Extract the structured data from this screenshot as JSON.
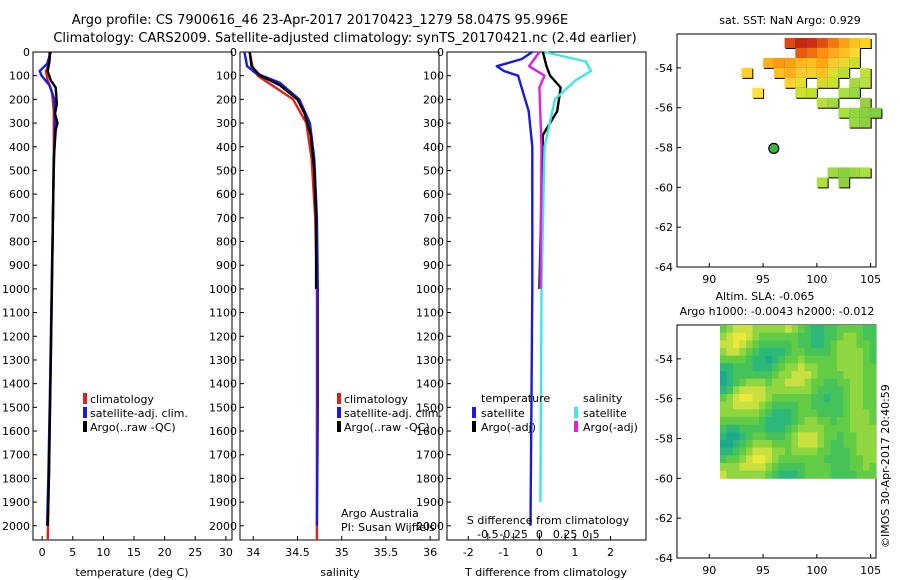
{
  "figure": {
    "title_line_1": "Argo profile: CS 7900616_46 23-Apr-2017 20170423_1279 58.047S 95.996E",
    "title_line_2": "Climatology: CARS2009. Satellite-adjusted climatology: synTS_20170421.nc (2.4d earlier)",
    "credit_1": "Argo Australia",
    "credit_2": "PI: Susan Wijffels",
    "stamp": "©IMOS 30-Apr-2017 20:40:59"
  },
  "colors": {
    "climatology": "#e0201a",
    "satellite": "#1a1ae0",
    "argo": "#000000",
    "salinity_satellite": "#3ee6e6",
    "salinity_argo": "#e020e0"
  },
  "chart_data": [
    {
      "type": "line",
      "name": "temperature",
      "xlabel": "temperature (deg C)",
      "xlim": [
        -1.5,
        31
      ],
      "ylim": [
        0,
        2060
      ],
      "x_ticks": [
        0,
        5,
        10,
        15,
        20,
        25,
        30
      ],
      "y_ticks": [
        0,
        100,
        200,
        300,
        400,
        500,
        600,
        700,
        800,
        900,
        1000,
        1100,
        1200,
        1300,
        1400,
        1500,
        1600,
        1700,
        1800,
        1900,
        2000
      ],
      "legend": [
        "climatology",
        "satellite-adj. clim.",
        "Argo(..raw -QC)"
      ],
      "series": [
        {
          "name": "climatology",
          "color": "#e0201a",
          "points": [
            [
              1.2,
              0
            ],
            [
              1.1,
              50
            ],
            [
              0.6,
              80
            ],
            [
              0.9,
              120
            ],
            [
              1.6,
              170
            ],
            [
              1.9,
              250
            ],
            [
              1.9,
              400
            ],
            [
              1.7,
              800
            ],
            [
              1.4,
              1300
            ],
            [
              1.1,
              1800
            ],
            [
              0.9,
              2060
            ]
          ]
        },
        {
          "name": "satellite-adj. clim.",
          "color": "#1a1ae0",
          "points": [
            [
              1.4,
              0
            ],
            [
              0.8,
              50
            ],
            [
              -0.4,
              80
            ],
            [
              -0.1,
              100
            ],
            [
              1.2,
              140
            ],
            [
              2.0,
              200
            ],
            [
              2.1,
              300
            ],
            [
              1.9,
              500
            ],
            [
              1.6,
              900
            ],
            [
              1.3,
              1400
            ],
            [
              1.0,
              1800
            ],
            [
              0.8,
              2000
            ]
          ]
        },
        {
          "name": "Argo(..raw -QC)",
          "color": "#000000",
          "points": [
            [
              1.3,
              0
            ],
            [
              1.2,
              40
            ],
            [
              0.9,
              80
            ],
            [
              1.4,
              120
            ],
            [
              2.2,
              150
            ],
            [
              2.4,
              220
            ],
            [
              2.1,
              260
            ],
            [
              2.5,
              300
            ],
            [
              2.2,
              330
            ],
            [
              1.9,
              450
            ],
            [
              1.7,
              800
            ],
            [
              1.4,
              1300
            ],
            [
              1.1,
              1800
            ],
            [
              0.9,
              2000
            ]
          ]
        }
      ]
    },
    {
      "type": "line",
      "name": "salinity",
      "xlabel": "salinity",
      "xlim": [
        33.85,
        36.1
      ],
      "ylim": [
        0,
        2060
      ],
      "x_ticks": [
        34,
        34.5,
        35,
        35.5,
        36
      ],
      "legend": [
        "climatology",
        "satellite-adj. clim.",
        "Argo(..raw -QC)"
      ],
      "series": [
        {
          "name": "climatology",
          "color": "#e0201a",
          "points": [
            [
              33.96,
              0
            ],
            [
              33.99,
              60
            ],
            [
              34.05,
              100
            ],
            [
              34.25,
              150
            ],
            [
              34.45,
              200
            ],
            [
              34.6,
              300
            ],
            [
              34.66,
              450
            ],
            [
              34.7,
              700
            ],
            [
              34.72,
              1000
            ],
            [
              34.72,
              1500
            ],
            [
              34.72,
              2060
            ]
          ]
        },
        {
          "name": "satellite-adj. clim.",
          "color": "#1a1ae0",
          "points": [
            [
              33.9,
              0
            ],
            [
              33.93,
              60
            ],
            [
              34.03,
              90
            ],
            [
              34.3,
              130
            ],
            [
              34.52,
              200
            ],
            [
              34.64,
              300
            ],
            [
              34.69,
              450
            ],
            [
              34.72,
              700
            ],
            [
              34.73,
              1000
            ],
            [
              34.73,
              1500
            ],
            [
              34.72,
              2000
            ]
          ]
        },
        {
          "name": "Argo(..raw -QC)",
          "color": "#000000",
          "points": [
            [
              33.96,
              0
            ],
            [
              33.98,
              60
            ],
            [
              34.08,
              100
            ],
            [
              34.3,
              140
            ],
            [
              34.5,
              200
            ],
            [
              34.58,
              260
            ],
            [
              34.65,
              350
            ],
            [
              34.69,
              500
            ],
            [
              34.71,
              700
            ],
            [
              34.71,
              1000
            ]
          ]
        }
      ]
    },
    {
      "type": "line",
      "name": "difference",
      "xlabel": "T difference from climatology",
      "xlabel_top": "S difference from climatology",
      "xlim": [
        -2.6,
        3.0
      ],
      "x_ticks": [
        -2,
        -1,
        0,
        1,
        2
      ],
      "s_ticks": [
        -0.5,
        -0.25,
        0,
        0.25,
        0.5
      ],
      "s_tick_labels": [
        "-0.5",
        "-0.25",
        "0",
        "0.25",
        "0.5"
      ],
      "legend_temperature": {
        "title": "temperature",
        "items": [
          "satellite",
          "Argo(-adj)"
        ]
      },
      "legend_salinity": {
        "title": "salinity",
        "items": [
          "satellite",
          "Argo(-adj)"
        ]
      },
      "series": [
        {
          "name": "temperature satellite",
          "color": "#1a1ae0",
          "points": [
            [
              -0.2,
              0
            ],
            [
              -0.5,
              30
            ],
            [
              -1.2,
              60
            ],
            [
              -1.0,
              80
            ],
            [
              -0.6,
              100
            ],
            [
              -0.5,
              150
            ],
            [
              -0.3,
              250
            ],
            [
              -0.2,
              400
            ],
            [
              -0.2,
              1000
            ],
            [
              -0.25,
              2000
            ]
          ]
        },
        {
          "name": "temperature Argo(-adj)",
          "color": "#000000",
          "points": [
            [
              0.1,
              0
            ],
            [
              0.2,
              60
            ],
            [
              0.3,
              100
            ],
            [
              0.6,
              150
            ],
            [
              0.5,
              250
            ],
            [
              0.1,
              350
            ],
            [
              0.0,
              1000
            ]
          ]
        },
        {
          "name": "salinity satellite",
          "color": "#3ee6e6",
          "points": [
            [
              0.05,
              0
            ],
            [
              0.45,
              40
            ],
            [
              0.5,
              80
            ],
            [
              0.35,
              120
            ],
            [
              0.15,
              200
            ],
            [
              0.05,
              400
            ],
            [
              0.02,
              1000
            ],
            [
              0.01,
              1900
            ]
          ]
        },
        {
          "name": "salinity Argo(-adj)",
          "color": "#e020e0",
          "points": [
            [
              0.0,
              0
            ],
            [
              -0.1,
              60
            ],
            [
              0.05,
              100
            ],
            [
              0.0,
              150
            ],
            [
              0.02,
              400
            ],
            [
              0.01,
              1000
            ]
          ]
        }
      ]
    },
    {
      "type": "heatmap",
      "name": "sst-map",
      "title": "sat. SST: NaN Argo: 0.929",
      "xlim": [
        87,
        105.5
      ],
      "ylim": [
        -64,
        -52.3
      ],
      "x_ticks": [
        90,
        95,
        100,
        105
      ],
      "y_ticks": [
        -54,
        -56,
        -58,
        -60,
        -62,
        -64
      ],
      "argo_position": {
        "lon": 95.996,
        "lat": -58.047
      },
      "cells": [
        [
          97,
          -52.5,
          "#e04a10"
        ],
        [
          98,
          -52.5,
          "#c02a10"
        ],
        [
          99,
          -52.5,
          "#d03010"
        ],
        [
          100,
          -52.5,
          "#e05010"
        ],
        [
          101,
          -52.5,
          "#f07a10"
        ],
        [
          102,
          -52.5,
          "#ffa010"
        ],
        [
          103,
          -52.5,
          "#ffc020"
        ],
        [
          104,
          -52.5,
          "#ffd020"
        ],
        [
          98,
          -53,
          "#e85a10"
        ],
        [
          99,
          -53,
          "#f07010"
        ],
        [
          100,
          -53,
          "#ff9010"
        ],
        [
          101,
          -53,
          "#ffa820"
        ],
        [
          102,
          -53,
          "#ffc020"
        ],
        [
          103,
          -53,
          "#ffd830"
        ],
        [
          95,
          -53.5,
          "#ffb020"
        ],
        [
          96,
          -53.5,
          "#ff9a10"
        ],
        [
          97,
          -53.5,
          "#ffa010"
        ],
        [
          98,
          -53.5,
          "#ffb820"
        ],
        [
          99,
          -53.5,
          "#ffc020"
        ],
        [
          100,
          -53.5,
          "#ffa810"
        ],
        [
          101,
          -53.5,
          "#ffc830"
        ],
        [
          102,
          -53.5,
          "#e8d830"
        ],
        [
          103,
          -53.5,
          "#c8e030"
        ],
        [
          93,
          -54,
          "#ffd020"
        ],
        [
          96,
          -54,
          "#ffc020"
        ],
        [
          97,
          -54,
          "#ffb020"
        ],
        [
          98,
          -54,
          "#ffc830"
        ],
        [
          99,
          -54,
          "#f0d030"
        ],
        [
          100,
          -54,
          "#ffc020"
        ],
        [
          101,
          -54,
          "#d8e030"
        ],
        [
          102,
          -54,
          "#b8e030"
        ],
        [
          104,
          -54,
          "#c0e040"
        ],
        [
          97,
          -54.5,
          "#ffd030"
        ],
        [
          98,
          -54.5,
          "#e0e030"
        ],
        [
          100,
          -54.5,
          "#d8d830"
        ],
        [
          101,
          -54.5,
          "#c8e030"
        ],
        [
          103,
          -54.5,
          "#a8d840"
        ],
        [
          104,
          -54.5,
          "#b8e040"
        ],
        [
          94,
          -55,
          "#ffe040"
        ],
        [
          98,
          -55,
          "#d0e030"
        ],
        [
          99,
          -55,
          "#c0e030"
        ],
        [
          102,
          -55,
          "#a8e040"
        ],
        [
          103,
          -55,
          "#98d840"
        ],
        [
          100,
          -55.5,
          "#b8e040"
        ],
        [
          101,
          -55.5,
          "#a0d840"
        ],
        [
          104,
          -55.5,
          "#98d040"
        ],
        [
          102,
          -56,
          "#a8e040"
        ],
        [
          103,
          -56,
          "#90d840"
        ],
        [
          104,
          -56,
          "#88d040"
        ],
        [
          105,
          -56,
          "#80d040"
        ],
        [
          103,
          -56.5,
          "#98d840"
        ],
        [
          104,
          -56.5,
          "#90d040"
        ],
        [
          101,
          -59,
          "#a0d840"
        ],
        [
          102,
          -59,
          "#88d040"
        ],
        [
          103,
          -59,
          "#98d840"
        ],
        [
          104,
          -59,
          "#a8e040"
        ],
        [
          100,
          -59.5,
          "#b0e040"
        ],
        [
          102,
          -59.5,
          "#90d040"
        ]
      ]
    },
    {
      "type": "heatmap",
      "name": "sla-map",
      "title": "Altim. SLA: -0.065",
      "subtitle": "Argo h1000: -0.0043 h2000: -0.012",
      "xlim": [
        87,
        105.5
      ],
      "ylim": [
        -64,
        -52.3
      ],
      "x_ticks": [
        90,
        95,
        100,
        105
      ],
      "y_ticks": [
        -54,
        -56,
        -58,
        -60,
        -62,
        -64
      ],
      "data_extent": {
        "lon": [
          91.0,
          105.5
        ],
        "lat": [
          -60.0,
          -52.3
        ]
      }
    }
  ]
}
